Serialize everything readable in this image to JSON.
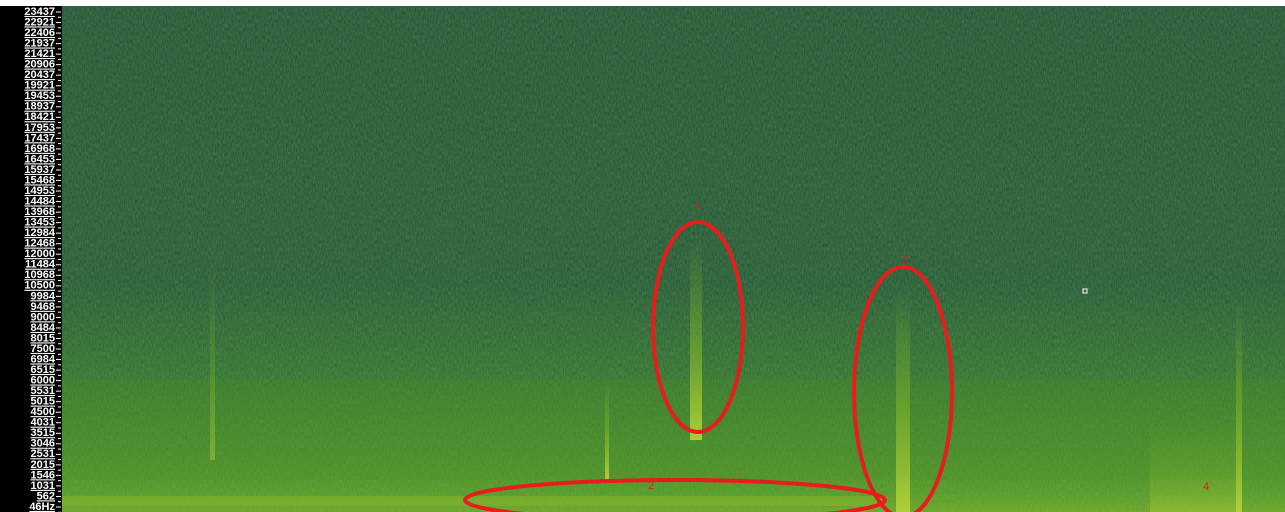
{
  "frequency_scale": {
    "labels": [
      "23437",
      "22921",
      "22406",
      "21937",
      "21421",
      "20906",
      "20437",
      "19921",
      "19453",
      "18937",
      "18421",
      "17953",
      "17437",
      "16968",
      "16453",
      "15937",
      "15468",
      "14953",
      "14484",
      "13968",
      "13453",
      "12984",
      "12468",
      "12000",
      "11484",
      "10968",
      "10500",
      "9984",
      "9468",
      "9000",
      "8484",
      "8015",
      "7500",
      "6984",
      "6515",
      "6000",
      "5531",
      "5015",
      "4500",
      "4031",
      "3515",
      "3046",
      "2531",
      "2015",
      "1546",
      "1031",
      "562",
      "46Hz"
    ]
  },
  "annotations": [
    {
      "label": "1"
    },
    {
      "label": "2"
    },
    {
      "label": "3"
    },
    {
      "label": "4"
    }
  ]
}
